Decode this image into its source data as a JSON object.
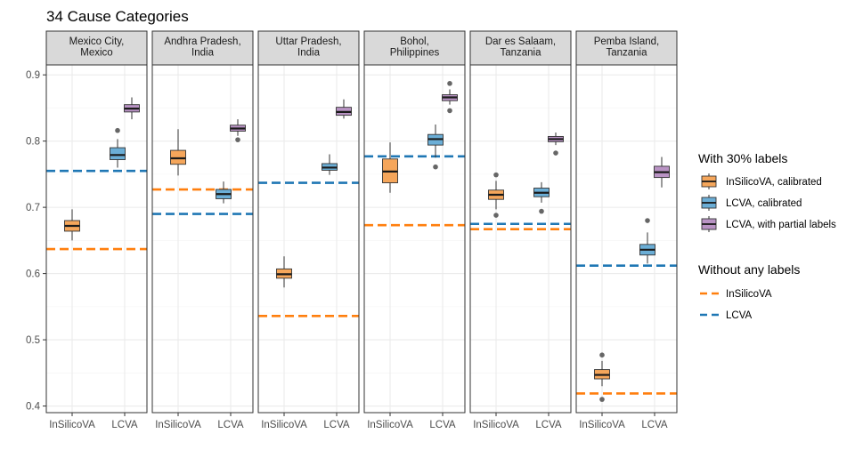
{
  "chart_data": {
    "type": "boxplot",
    "title": "34 Cause Categories",
    "ylim": [
      0.39,
      0.915
    ],
    "yticks": [
      0.4,
      0.5,
      0.6,
      0.7,
      0.8,
      0.9
    ],
    "ytick_labels": [
      "0.4",
      "0.5",
      "0.6",
      "0.7",
      "0.8",
      "0.9"
    ],
    "categories": [
      "InSilicoVA",
      "LCVA"
    ],
    "colors": {
      "insilico_calibrated": "#F5A65B",
      "lcva_calibrated": "#6BAED6",
      "lcva_partial": "#B993C4",
      "line_insilico": "#FF7F0E",
      "line_lcva": "#1F77B4",
      "strip_fill": "#D9D9D9",
      "grid": "#EBEBEB"
    },
    "legend": {
      "title_with": "With 30% labels",
      "with_items": [
        {
          "key": "insilico_calibrated",
          "label": "InSilicoVA, calibrated"
        },
        {
          "key": "lcva_calibrated",
          "label": "LCVA, calibrated"
        },
        {
          "key": "lcva_partial",
          "label": "LCVA, with partial labels"
        }
      ],
      "title_without": "Without any labels",
      "without_items": [
        {
          "key": "line_insilico",
          "label": "InSilicoVA"
        },
        {
          "key": "line_lcva",
          "label": "LCVA"
        }
      ]
    },
    "panels": [
      {
        "strip": [
          "Mexico City,",
          "Mexico"
        ],
        "hline_insilico": 0.637,
        "hline_lcva": 0.755,
        "boxes": [
          {
            "series": "insilico_calibrated",
            "category": "InSilicoVA",
            "min": 0.65,
            "q1": 0.664,
            "median": 0.672,
            "q3": 0.68,
            "max": 0.697,
            "outliers": []
          },
          {
            "series": "lcva_calibrated",
            "category": "LCVA",
            "min": 0.76,
            "q1": 0.772,
            "median": 0.779,
            "q3": 0.79,
            "max": 0.803,
            "outliers": [
              0.816
            ]
          },
          {
            "series": "lcva_partial",
            "category": "LCVA",
            "min": 0.833,
            "q1": 0.844,
            "median": 0.849,
            "q3": 0.855,
            "max": 0.866,
            "outliers": []
          }
        ]
      },
      {
        "strip": [
          "Andhra Pradesh,",
          "India"
        ],
        "hline_insilico": 0.727,
        "hline_lcva": 0.69,
        "boxes": [
          {
            "series": "insilico_calibrated",
            "category": "InSilicoVA",
            "min": 0.748,
            "q1": 0.765,
            "median": 0.774,
            "q3": 0.786,
            "max": 0.818,
            "outliers": []
          },
          {
            "series": "lcva_calibrated",
            "category": "LCVA",
            "min": 0.706,
            "q1": 0.713,
            "median": 0.72,
            "q3": 0.727,
            "max": 0.739,
            "outliers": []
          },
          {
            "series": "lcva_partial",
            "category": "LCVA",
            "min": 0.808,
            "q1": 0.815,
            "median": 0.819,
            "q3": 0.824,
            "max": 0.833,
            "outliers": [
              0.802
            ]
          }
        ]
      },
      {
        "strip": [
          "Uttar Pradesh,",
          "India"
        ],
        "hline_insilico": 0.536,
        "hline_lcva": 0.737,
        "boxes": [
          {
            "series": "insilico_calibrated",
            "category": "InSilicoVA",
            "min": 0.579,
            "q1": 0.593,
            "median": 0.599,
            "q3": 0.607,
            "max": 0.626,
            "outliers": []
          },
          {
            "series": "lcva_calibrated",
            "category": "LCVA",
            "min": 0.749,
            "q1": 0.756,
            "median": 0.76,
            "q3": 0.766,
            "max": 0.78,
            "outliers": []
          },
          {
            "series": "lcva_partial",
            "category": "LCVA",
            "min": 0.834,
            "q1": 0.839,
            "median": 0.844,
            "q3": 0.851,
            "max": 0.863,
            "outliers": []
          }
        ]
      },
      {
        "strip": [
          "Bohol,",
          "Philippines"
        ],
        "hline_insilico": 0.673,
        "hline_lcva": 0.777,
        "boxes": [
          {
            "series": "insilico_calibrated",
            "category": "InSilicoVA",
            "min": 0.722,
            "q1": 0.737,
            "median": 0.754,
            "q3": 0.773,
            "max": 0.798,
            "outliers": []
          },
          {
            "series": "lcva_calibrated",
            "category": "LCVA",
            "min": 0.775,
            "q1": 0.794,
            "median": 0.803,
            "q3": 0.81,
            "max": 0.825,
            "outliers": [
              0.761
            ]
          },
          {
            "series": "lcva_partial",
            "category": "LCVA",
            "min": 0.855,
            "q1": 0.861,
            "median": 0.866,
            "q3": 0.87,
            "max": 0.878,
            "outliers": [
              0.846,
              0.887
            ]
          }
        ]
      },
      {
        "strip": [
          "Dar es Salaam,",
          "Tanzania"
        ],
        "hline_insilico": 0.667,
        "hline_lcva": 0.675,
        "boxes": [
          {
            "series": "insilico_calibrated",
            "category": "InSilicoVA",
            "min": 0.697,
            "q1": 0.712,
            "median": 0.719,
            "q3": 0.726,
            "max": 0.74,
            "outliers": [
              0.688,
              0.749
            ]
          },
          {
            "series": "lcva_calibrated",
            "category": "LCVA",
            "min": 0.707,
            "q1": 0.716,
            "median": 0.722,
            "q3": 0.729,
            "max": 0.738,
            "outliers": [
              0.694
            ]
          },
          {
            "series": "lcva_partial",
            "category": "LCVA",
            "min": 0.794,
            "q1": 0.799,
            "median": 0.803,
            "q3": 0.807,
            "max": 0.813,
            "outliers": [
              0.782
            ]
          }
        ]
      },
      {
        "strip": [
          "Pemba Island,",
          "Tanzania"
        ],
        "hline_insilico": 0.419,
        "hline_lcva": 0.612,
        "boxes": [
          {
            "series": "insilico_calibrated",
            "category": "InSilicoVA",
            "min": 0.43,
            "q1": 0.441,
            "median": 0.447,
            "q3": 0.455,
            "max": 0.468,
            "outliers": [
              0.41,
              0.477
            ]
          },
          {
            "series": "lcva_calibrated",
            "category": "LCVA",
            "min": 0.615,
            "q1": 0.628,
            "median": 0.636,
            "q3": 0.644,
            "max": 0.662,
            "outliers": [
              0.68
            ]
          },
          {
            "series": "lcva_partial",
            "category": "LCVA",
            "min": 0.73,
            "q1": 0.745,
            "median": 0.753,
            "q3": 0.762,
            "max": 0.776,
            "outliers": []
          }
        ]
      }
    ]
  }
}
